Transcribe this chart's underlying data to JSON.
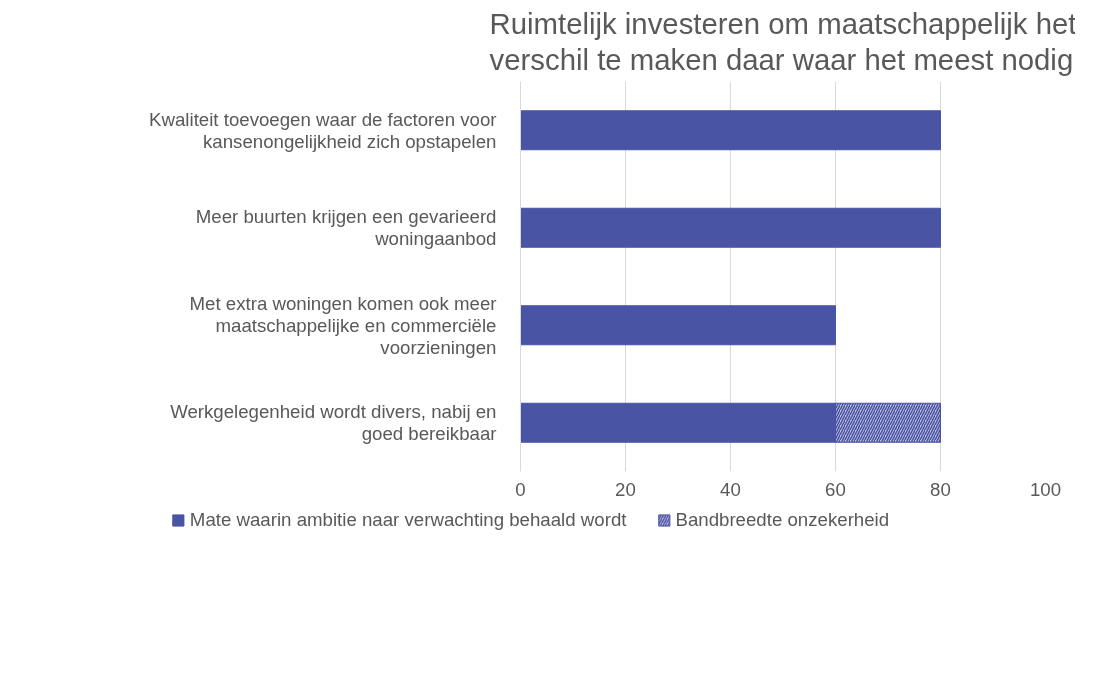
{
  "chart_data": {
    "type": "bar",
    "orientation": "horizontal",
    "stacked": true,
    "title": "Ruimtelijk investeren om maatschappelijk het verschil te maken daar waar het meest nodig",
    "categories": [
      "Kwaliteit toevoegen waar de factoren voor kansenongelijkheid zich opstapelen",
      "Meer buurten krijgen een gevarieerd woningaanbod",
      "Met extra woningen komen ook meer maatschappelijke en commerciële voorzieningen",
      "Werkgelegenheid wordt divers, nabij en goed bereikbaar"
    ],
    "series": [
      {
        "name": "Mate waarin ambitie naar verwachting behaald wordt",
        "color": "#4a54a4",
        "values": [
          80,
          80,
          60,
          60
        ]
      },
      {
        "name": "Bandbreedte onzekerheid",
        "color": "#4a54a4",
        "values": [
          null,
          null,
          null,
          20
        ]
      }
    ],
    "xlim": [
      0,
      100
    ],
    "xticks": [
      0,
      20,
      40,
      60,
      80,
      100
    ],
    "grid": "x",
    "legend": "bottom"
  }
}
